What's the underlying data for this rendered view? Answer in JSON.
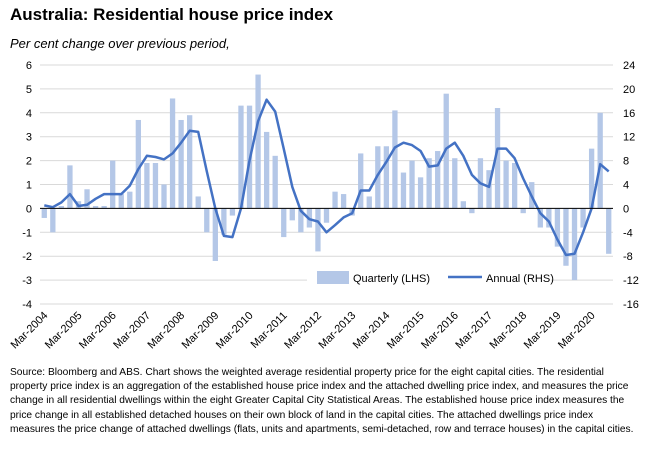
{
  "title": "Australia: Residential house price index",
  "subtitle": "Per cent change over previous period,",
  "source": "Source: Bloomberg and ABS. Chart shows the weighted average residential property price for the eight capital cities.  The residential property price index is an aggregation of the established house price index and the attached dwelling price index, and measures the price change in all residential dwellings within the eight Greater Capital City Statistical Areas.  The established house price index measures the price change in all established detached houses on their own block of land in the capital cities. The attached dwellings price index measures the price change of attached dwellings (flats, units and apartments, semi-detached, row and terrace houses) in the capital cities.",
  "colors": {
    "bars": "#b4c7e7",
    "line": "#4472c4",
    "grid": "#d9d9d9"
  },
  "chart_data": {
    "type": "bar",
    "x_tick_labels": [
      "Mar-2004",
      "Mar-2005",
      "Mar-2006",
      "Mar-2007",
      "Mar-2008",
      "Mar-2009",
      "Mar-2010",
      "Mar-2011",
      "Mar-2012",
      "Mar-2013",
      "Mar-2014",
      "Mar-2015",
      "Mar-2016",
      "Mar-2017",
      "Mar-2018",
      "Mar-2019",
      "Mar-2020"
    ],
    "y_left": {
      "ticks": [
        6,
        5,
        4,
        3,
        2,
        1,
        0,
        -1,
        -2,
        -3,
        -4
      ],
      "ylim": [
        -4,
        6
      ]
    },
    "y_right": {
      "ticks": [
        24,
        20,
        16,
        12,
        8,
        4,
        0,
        -4,
        -8,
        -12,
        -16
      ],
      "ylim": [
        -16,
        24
      ]
    },
    "legend_position": "bottom-right",
    "series": [
      {
        "name": "Quarterly (LHS)",
        "type": "bar",
        "axis": "left",
        "values": [
          -0.4,
          -1.0,
          0.1,
          1.8,
          0.3,
          0.8,
          0.1,
          0.1,
          2.0,
          0.6,
          0.7,
          3.7,
          1.9,
          1.9,
          1.0,
          4.6,
          3.7,
          3.9,
          0.5,
          -1.0,
          -2.2,
          -1.1,
          -0.3,
          4.3,
          4.3,
          5.6,
          3.2,
          2.2,
          -1.2,
          -0.5,
          -1.0,
          -0.8,
          -1.8,
          -0.6,
          0.7,
          0.6,
          -0.3,
          2.3,
          0.5,
          2.6,
          2.6,
          4.1,
          1.5,
          2.0,
          1.3,
          2.1,
          2.4,
          4.8,
          2.1,
          0.3,
          -0.2,
          2.1,
          1.6,
          4.2,
          2.0,
          1.9,
          -0.2,
          1.1,
          -0.8,
          -0.8,
          -1.6,
          -2.4,
          -3.0,
          -0.8,
          2.5,
          4.0,
          -1.9
        ]
      },
      {
        "name": "Annual (RHS)",
        "type": "line",
        "axis": "right",
        "values": [
          0.5,
          0.2,
          1.0,
          2.4,
          0.4,
          0.6,
          1.6,
          2.4,
          2.4,
          2.4,
          3.8,
          6.6,
          8.8,
          8.6,
          8.2,
          9.2,
          11.0,
          13.0,
          12.8,
          6.2,
          0.0,
          -4.6,
          -4.8,
          0.0,
          8.0,
          14.6,
          18.2,
          16.2,
          10.0,
          3.6,
          -0.4,
          -1.8,
          -2.2,
          -4.0,
          -2.8,
          -1.5,
          -0.8,
          3.0,
          3.0,
          5.6,
          7.8,
          10.2,
          11.0,
          10.6,
          9.6,
          7.0,
          7.2,
          10.0,
          11.0,
          8.8,
          5.6,
          4.2,
          3.6,
          10.0,
          10.0,
          8.4,
          5.0,
          2.0,
          -0.8,
          -2.2,
          -5.2,
          -7.8,
          -7.6,
          -4.0,
          0.0,
          7.4,
          6.2
        ]
      }
    ]
  }
}
